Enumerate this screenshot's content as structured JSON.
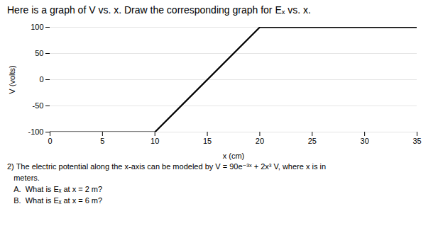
{
  "chart_data": {
    "type": "line",
    "title": "Here is a graph of V vs. x. Draw the corresponding graph for Eₓ vs. x.",
    "xlabel": "x (cm)",
    "ylabel": "V (volts)",
    "x": [
      0,
      10,
      20,
      35
    ],
    "values": [
      -100,
      -100,
      100,
      100
    ],
    "color": "black",
    "xlim": [
      0,
      35
    ],
    "ylim": [
      -100,
      100
    ],
    "xticks": [
      0,
      5,
      10,
      15,
      20,
      25,
      30,
      35
    ],
    "yticks": [
      -100,
      -50,
      0,
      50,
      100
    ],
    "grid": "y",
    "caption": [
      "2) The electric potential along the x-axis can be modeled by V = 90e⁻³ˣ + 2x³ V, where x is in",
      "   meters.",
      "   A.  What is Eₓ at x = 2 m?",
      "   B.  What is Eₓ at x = 6 m?"
    ]
  }
}
